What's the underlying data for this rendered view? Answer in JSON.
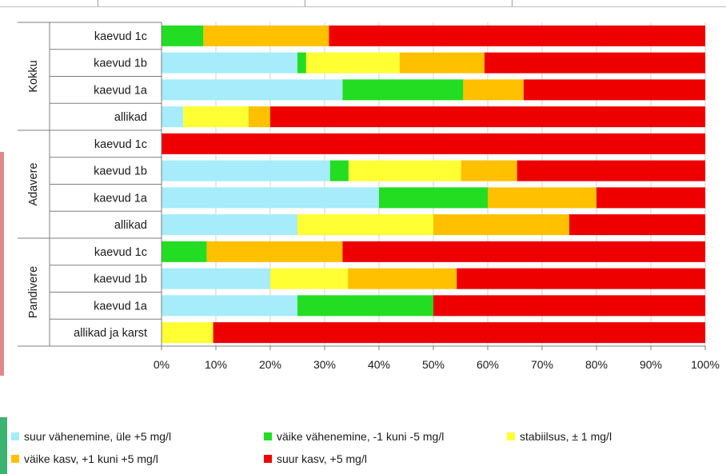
{
  "chart_data": {
    "type": "bar",
    "orientation": "horizontal",
    "stacked": "percent",
    "groups": [
      {
        "name": "Kokku",
        "categories": [
          "kaevud 1c",
          "kaevud 1b",
          "kaevud 1a",
          "allikad"
        ]
      },
      {
        "name": "Adavere",
        "categories": [
          "kaevud 1c",
          "kaevud 1b",
          "kaevud 1a",
          "allikad"
        ]
      },
      {
        "name": "Pandivere",
        "categories": [
          "kaevud 1c",
          "kaevud 1b",
          "kaevud 1a",
          "allikad ja karst"
        ]
      }
    ],
    "series": [
      {
        "name": "suur vähenemine, üle +5 mg/l",
        "color": "#a6ecfa",
        "values": [
          0,
          25,
          33.3,
          4,
          0,
          31,
          40,
          25,
          0,
          20,
          25,
          0
        ]
      },
      {
        "name": "väike vähenemine, -1 kuni -5 mg/l",
        "color": "#22dd22",
        "values": [
          7.7,
          1.6,
          22.2,
          0,
          0,
          3.4,
          20,
          0,
          8.3,
          0,
          25,
          0
        ]
      },
      {
        "name": "stabiilsus, ± 1 mg/l",
        "color": "#ffff33",
        "values": [
          0,
          17.2,
          0,
          12,
          0,
          20.7,
          0,
          25,
          0,
          14.3,
          0,
          9.5
        ]
      },
      {
        "name": "väike kasv, +1 kuni +5 mg/l",
        "color": "#ffc000",
        "values": [
          23.1,
          15.6,
          11.1,
          4,
          0,
          10.3,
          20,
          25,
          25,
          20,
          0,
          0
        ]
      },
      {
        "name": "suur kasv, +5 mg/l",
        "color": "#ee0000",
        "values": [
          69.2,
          40.6,
          33.4,
          80,
          100,
          34.6,
          20,
          25,
          66.7,
          45.7,
          50,
          90.5
        ]
      }
    ],
    "xlim": [
      0,
      100
    ],
    "xticks": [
      "0%",
      "10%",
      "20%",
      "30%",
      "40%",
      "50%",
      "60%",
      "70%",
      "80%",
      "90%",
      "100%"
    ],
    "grid": "vertical",
    "legend_position": "bottom"
  }
}
